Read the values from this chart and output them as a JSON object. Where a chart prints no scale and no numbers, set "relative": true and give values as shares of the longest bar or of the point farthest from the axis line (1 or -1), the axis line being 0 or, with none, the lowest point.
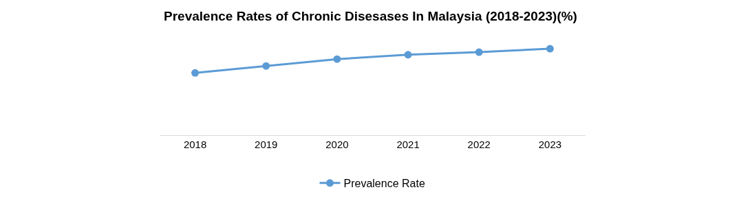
{
  "chart_data": {
    "type": "line",
    "title": "Prevalence Rates of Chronic Disesases In Malaysia (2018-2023)(%)",
    "relative": true,
    "categories": [
      "2018",
      "2019",
      "2020",
      "2021",
      "2022",
      "2023"
    ],
    "series": [
      {
        "name": "Prevalence Rate",
        "color": "#5b9bd5",
        "values": [
          0.72,
          0.8,
          0.88,
          0.93,
          0.96,
          1
        ]
      }
    ],
    "marker": "circle",
    "line_style": "solid",
    "legend": "bottom"
  }
}
